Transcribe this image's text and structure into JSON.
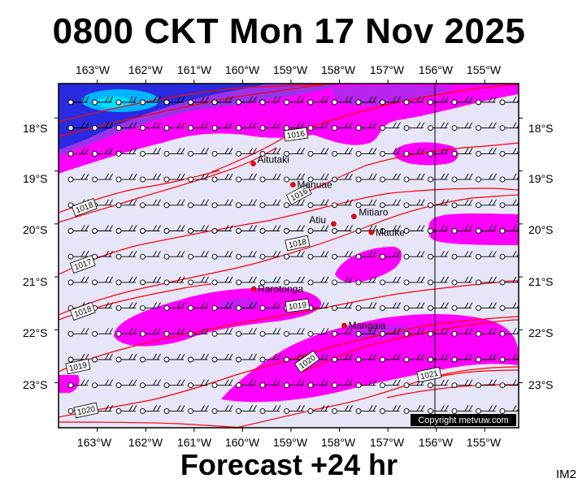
{
  "title": "0800 CKT Mon 17 Nov 2025",
  "footer": "Forecast +24 hr",
  "code": "IM2",
  "copyright": "Copyright metvuw.com",
  "lon_labels": [
    "163°W",
    "162°W",
    "161°W",
    "160°W",
    "159°W",
    "158°W",
    "157°W",
    "156°W",
    "155°W"
  ],
  "lat_labels": [
    "18°S",
    "19°S",
    "20°S",
    "21°S",
    "22°S",
    "23°S"
  ],
  "places": [
    {
      "name": "Aitutaki",
      "lon": -159.78,
      "lat": -18.86
    },
    {
      "name": "Manuae",
      "lon": -158.96,
      "lat": -19.26
    },
    {
      "name": "Atiu",
      "lon": -158.12,
      "lat": -20.0
    },
    {
      "name": "Mitiaro",
      "lon": -157.7,
      "lat": -19.86
    },
    {
      "name": "Mauke",
      "lon": -157.34,
      "lat": -20.16
    },
    {
      "name": "Rarotonga",
      "lon": -159.77,
      "lat": -21.23
    },
    {
      "name": "Mangaia",
      "lon": -157.9,
      "lat": -21.92
    }
  ],
  "isobar_labels": [
    "1016",
    "1016",
    "1018",
    "1018",
    "1017",
    "1018",
    "1019",
    "1019",
    "1020",
    "1021",
    "1020"
  ],
  "colors": {
    "background": "#e6e6f8",
    "rain_light": "#ff00ff",
    "rain_mid": "#9a33e8",
    "rain_heavy": "#2a2ae0",
    "rain_max": "#00b4ff",
    "isobar": "#ff0000",
    "place_dot": "#ff0000"
  }
}
